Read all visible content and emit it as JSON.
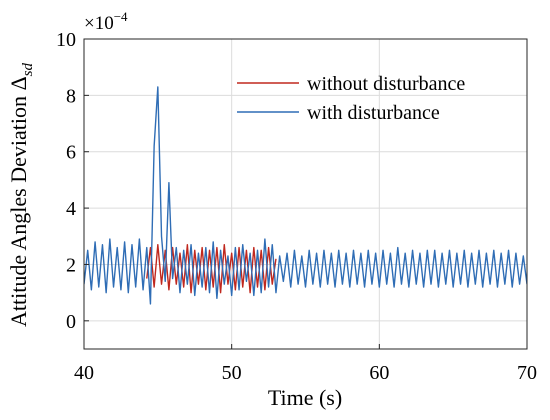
{
  "chart_data": {
    "type": "line",
    "xlabel": "Time (s)",
    "ylabel": "Attitude Angles Deviation Δ",
    "ylabel_sub": "sd",
    "y_multiplier": "×10",
    "y_exponent": "−4",
    "xlim": [
      40,
      70
    ],
    "xticks": [
      40,
      50,
      60,
      70
    ],
    "ylim": [
      -1,
      10
    ],
    "yticks": [
      0,
      2,
      4,
      6,
      8,
      10
    ],
    "grid": true,
    "legend": "upper right",
    "series": [
      {
        "name": "without disturbance",
        "color": "#c0281e",
        "x": [
          44.25,
          44.5,
          44.75,
          45,
          45.25,
          45.5,
          45.75,
          46,
          46.25,
          46.5,
          46.75,
          47,
          47.25,
          47.5,
          47.75,
          48,
          48.25,
          48.5,
          48.75,
          49,
          49.25,
          49.5,
          49.75,
          50,
          50.25,
          50.5,
          50.75,
          51,
          51.25,
          51.5,
          51.75,
          52,
          52.25,
          52.5,
          52.75,
          53
        ],
        "values": [
          1.5,
          2.6,
          1.2,
          2.7,
          1.3,
          2.5,
          1.1,
          2.6,
          1.3,
          2.4,
          1.2,
          2.7,
          1.0,
          2.5,
          1.3,
          2.6,
          1.1,
          2.5,
          1.2,
          2.6,
          1.0,
          2.7,
          1.3,
          2.4,
          1.1,
          2.6,
          1.2,
          2.5,
          1.0,
          2.6,
          1.2,
          2.5,
          1.1,
          2.6,
          1.3,
          2.2
        ]
      },
      {
        "name": "with disturbance",
        "color": "#2f6db5",
        "x": [
          40,
          40.25,
          40.5,
          40.75,
          41,
          41.25,
          41.5,
          41.75,
          42,
          42.25,
          42.5,
          42.75,
          43,
          43.25,
          43.5,
          43.75,
          44,
          44.25,
          44.5,
          44.75,
          45,
          45.25,
          45.5,
          45.75,
          46,
          46.25,
          46.5,
          46.75,
          47,
          47.25,
          47.5,
          47.75,
          48,
          48.25,
          48.5,
          48.75,
          49,
          49.25,
          49.5,
          49.75,
          50,
          50.25,
          50.5,
          50.75,
          51,
          51.25,
          51.5,
          51.75,
          52,
          52.25,
          52.5,
          52.75,
          53,
          53.25,
          53.5,
          53.75,
          54,
          54.25,
          54.5,
          54.75,
          55,
          55.25,
          55.5,
          55.75,
          56,
          56.25,
          56.5,
          56.75,
          57,
          57.25,
          57.5,
          57.75,
          58,
          58.25,
          58.5,
          58.75,
          59,
          59.25,
          59.5,
          59.75,
          60,
          60.25,
          60.5,
          60.75,
          61,
          61.25,
          61.5,
          61.75,
          62,
          62.25,
          62.5,
          62.75,
          63,
          63.25,
          63.5,
          63.75,
          64,
          64.25,
          64.5,
          64.75,
          65,
          65.25,
          65.5,
          65.75,
          66,
          66.25,
          66.5,
          66.75,
          67,
          67.25,
          67.5,
          67.75,
          68,
          68.25,
          68.5,
          68.75,
          69,
          69.25,
          69.5,
          69.75,
          70
        ],
        "values": [
          1.3,
          2.5,
          1.1,
          2.8,
          1.2,
          2.7,
          1.0,
          2.9,
          1.2,
          2.6,
          1.1,
          2.8,
          1.0,
          2.7,
          1.2,
          2.9,
          1.1,
          2.6,
          0.6,
          6.2,
          8.3,
          3.0,
          1.4,
          4.9,
          1.5,
          2.6,
          1.0,
          2.5,
          1.3,
          2.7,
          0.9,
          2.4,
          1.2,
          2.6,
          1.0,
          2.8,
          0.8,
          2.5,
          1.3,
          2.3,
          0.9,
          2.6,
          1.1,
          2.7,
          1.4,
          2.4,
          0.9,
          2.5,
          1.0,
          2.9,
          1.2,
          2.7,
          1.0,
          2.3,
          1.4,
          2.4,
          1.2,
          2.5,
          1.3,
          2.3,
          1.2,
          2.5,
          1.3,
          2.4,
          1.2,
          2.5,
          1.3,
          2.4,
          1.2,
          2.5,
          1.3,
          2.4,
          1.2,
          2.5,
          1.3,
          2.4,
          1.2,
          2.5,
          1.3,
          2.4,
          1.2,
          2.5,
          1.3,
          2.4,
          1.2,
          2.6,
          1.3,
          2.4,
          1.2,
          2.5,
          1.3,
          2.4,
          1.2,
          2.5,
          1.3,
          2.5,
          1.2,
          2.4,
          1.3,
          2.5,
          1.2,
          2.4,
          1.3,
          2.5,
          1.2,
          2.4,
          1.3,
          2.5,
          1.2,
          2.4,
          1.3,
          2.5,
          1.2,
          2.4,
          1.3,
          2.5,
          1.2,
          2.4,
          1.3,
          2.3,
          1.3
        ]
      }
    ]
  }
}
